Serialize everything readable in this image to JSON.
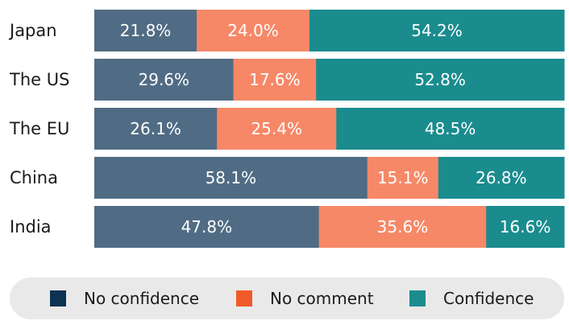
{
  "chart_data": {
    "type": "bar",
    "orientation": "horizontal",
    "stacked": true,
    "categories": [
      "Japan",
      "The US",
      "The EU",
      "China",
      "India"
    ],
    "series": [
      {
        "name": "No confidence",
        "values": [
          21.8,
          29.6,
          26.1,
          58.1,
          47.8
        ],
        "labels": [
          "21.8%",
          "29.6%",
          "26.1%",
          "58.1%",
          "47.8%"
        ],
        "color": "#506c84"
      },
      {
        "name": "No comment",
        "values": [
          24.0,
          17.6,
          25.4,
          15.1,
          35.6
        ],
        "labels": [
          "24.0%",
          "17.6%",
          "25.4%",
          "15.1%",
          "35.6%"
        ],
        "color": "#f68868"
      },
      {
        "name": "Confidence",
        "values": [
          54.2,
          52.8,
          48.5,
          26.8,
          16.6
        ],
        "labels": [
          "54.2%",
          "52.8%",
          "48.5%",
          "26.8%",
          "16.6%"
        ],
        "color": "#1a8c8e"
      }
    ],
    "xlim": [
      0,
      100
    ],
    "grid": false,
    "legend_position": "bottom"
  },
  "legend": [
    {
      "label": "No confidence",
      "color": "#0e3352"
    },
    {
      "label": "No comment",
      "color": "#f05a28"
    },
    {
      "label": "Confidence",
      "color": "#1a8c8e"
    }
  ]
}
